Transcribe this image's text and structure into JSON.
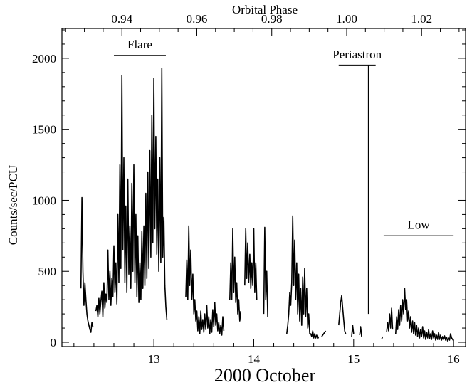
{
  "chart_data": {
    "type": "line",
    "title": "",
    "xlabel": "2000 October",
    "ylabel": "Counts/sec/PCU",
    "top_axis_label": "Orbital Phase",
    "xlim": [
      12.08,
      16.12
    ],
    "ylim": [
      -30,
      2210
    ],
    "x_ticks": [
      13,
      14,
      15,
      16
    ],
    "y_ticks": [
      0,
      500,
      1000,
      1500,
      2000
    ],
    "top_ticks": [
      {
        "label": "0.94",
        "x": 12.68
      },
      {
        "label": "0.96",
        "x": 13.43
      },
      {
        "label": "0.98",
        "x": 14.18
      },
      {
        "label": "1.00",
        "x": 14.93
      },
      {
        "label": "1.02",
        "x": 15.68
      }
    ],
    "annotations": [
      {
        "label": "Flare",
        "x_start": 12.6,
        "x_end": 13.12,
        "y": 2020
      },
      {
        "label": "Periastron",
        "x_start": 14.85,
        "x_end": 15.22,
        "y": 1950,
        "x_line": 15.15,
        "y_line_bottom": 200
      },
      {
        "label": "Low",
        "x_start": 15.3,
        "x_end": 16.0,
        "y": 750
      }
    ],
    "series": [
      {
        "segments": [
          [
            [
              12.27,
              380
            ],
            [
              12.28,
              1020
            ],
            [
              12.29,
              500
            ],
            [
              12.3,
              260
            ],
            [
              12.31,
              420
            ],
            [
              12.32,
              300
            ],
            [
              12.33,
              200
            ],
            [
              12.34,
              150
            ],
            [
              12.35,
              120
            ],
            [
              12.36,
              90
            ],
            [
              12.37,
              70
            ],
            [
              12.38,
              140
            ],
            [
              12.39,
              110
            ]
          ],
          [
            [
              12.42,
              220
            ],
            [
              12.43,
              260
            ],
            [
              12.44,
              180
            ],
            [
              12.45,
              310
            ],
            [
              12.46,
              200
            ],
            [
              12.47,
              290
            ],
            [
              12.48,
              360
            ],
            [
              12.49,
              180
            ],
            [
              12.5,
              420
            ],
            [
              12.51,
              240
            ],
            [
              12.52,
              340
            ],
            [
              12.53,
              280
            ],
            [
              12.54,
              650
            ],
            [
              12.55,
              300
            ],
            [
              12.56,
              500
            ],
            [
              12.57,
              260
            ],
            [
              12.58,
              450
            ],
            [
              12.59,
              320
            ],
            [
              12.6,
              680
            ],
            [
              12.61,
              350
            ],
            [
              12.62,
              560
            ],
            [
              12.63,
              270
            ],
            [
              12.64,
              900
            ],
            [
              12.65,
              420
            ],
            [
              12.66,
              1250
            ],
            [
              12.67,
              520
            ],
            [
              12.68,
              1880
            ],
            [
              12.69,
              650
            ],
            [
              12.7,
              1300
            ],
            [
              12.71,
              420
            ],
            [
              12.72,
              960
            ],
            [
              12.73,
              350
            ],
            [
              12.74,
              1150
            ],
            [
              12.75,
              480
            ],
            [
              12.76,
              820
            ],
            [
              12.77,
              380
            ],
            [
              12.78,
              1120
            ],
            [
              12.79,
              500
            ],
            [
              12.8,
              1250
            ],
            [
              12.81,
              420
            ],
            [
              12.82,
              900
            ],
            [
              12.83,
              320
            ],
            [
              12.84,
              750
            ],
            [
              12.85,
              280
            ],
            [
              12.86,
              560
            ],
            [
              12.87,
              300
            ],
            [
              12.88,
              780
            ],
            [
              12.89,
              380
            ],
            [
              12.9,
              820
            ],
            [
              12.91,
              400
            ],
            [
              12.92,
              1050
            ],
            [
              12.93,
              450
            ],
            [
              12.94,
              1200
            ],
            [
              12.95,
              520
            ],
            [
              12.96,
              1350
            ],
            [
              12.97,
              600
            ],
            [
              12.98,
              1600
            ],
            [
              12.99,
              700
            ],
            [
              13.0,
              1860
            ],
            [
              13.01,
              800
            ],
            [
              13.02,
              1450
            ],
            [
              13.03,
              620
            ],
            [
              13.04,
              1150
            ],
            [
              13.05,
              500
            ],
            [
              13.06,
              1300
            ],
            [
              13.07,
              560
            ],
            [
              13.08,
              1930
            ],
            [
              13.09,
              600
            ],
            [
              13.1,
              880
            ],
            [
              13.11,
              400
            ],
            [
              13.12,
              250
            ],
            [
              13.13,
              160
            ]
          ],
          [
            [
              13.32,
              320
            ],
            [
              13.33,
              580
            ],
            [
              13.34,
              300
            ],
            [
              13.35,
              820
            ],
            [
              13.36,
              400
            ],
            [
              13.37,
              650
            ],
            [
              13.38,
              300
            ],
            [
              13.39,
              480
            ],
            [
              13.4,
              200
            ],
            [
              13.41,
              300
            ],
            [
              13.42,
              150
            ],
            [
              13.43,
              220
            ],
            [
              13.44,
              80
            ],
            [
              13.45,
              180
            ],
            [
              13.46,
              60
            ],
            [
              13.47,
              220
            ],
            [
              13.48,
              90
            ],
            [
              13.49,
              160
            ],
            [
              13.5,
              70
            ],
            [
              13.51,
              200
            ],
            [
              13.52,
              90
            ],
            [
              13.53,
              260
            ],
            [
              13.54,
              100
            ],
            [
              13.55,
              180
            ],
            [
              13.56,
              60
            ],
            [
              13.57,
              160
            ],
            [
              13.58,
              70
            ],
            [
              13.59,
              230
            ],
            [
              13.6,
              110
            ],
            [
              13.61,
              280
            ],
            [
              13.62,
              120
            ],
            [
              13.63,
              200
            ],
            [
              13.64,
              80
            ],
            [
              13.65,
              140
            ],
            [
              13.66,
              60
            ],
            [
              13.67,
              120
            ],
            [
              13.68,
              50
            ],
            [
              13.69,
              180
            ],
            [
              13.7,
              80
            ]
          ],
          [
            [
              13.76,
              300
            ],
            [
              13.77,
              560
            ],
            [
              13.78,
              300
            ],
            [
              13.79,
              800
            ],
            [
              13.8,
              350
            ],
            [
              13.81,
              600
            ],
            [
              13.82,
              280
            ],
            [
              13.83,
              420
            ],
            [
              13.84,
              200
            ],
            [
              13.85,
              300
            ],
            [
              13.86,
              150
            ],
            [
              13.87,
              220
            ]
          ],
          [
            [
              13.91,
              400
            ],
            [
              13.92,
              800
            ],
            [
              13.93,
              450
            ],
            [
              13.94,
              700
            ],
            [
              13.95,
              420
            ],
            [
              13.96,
              620
            ],
            [
              13.97,
              380
            ],
            [
              13.98,
              560
            ],
            [
              13.99,
              400
            ],
            [
              14.0,
              800
            ],
            [
              14.01,
              350
            ],
            [
              14.02,
              560
            ],
            [
              14.03,
              300
            ]
          ],
          [
            [
              14.1,
              200
            ],
            [
              14.11,
              810
            ],
            [
              14.12,
              300
            ],
            [
              14.13,
              500
            ],
            [
              14.14,
              180
            ]
          ],
          [
            [
              14.33,
              60
            ],
            [
              14.34,
              120
            ],
            [
              14.35,
              200
            ],
            [
              14.36,
              350
            ],
            [
              14.37,
              260
            ],
            [
              14.38,
              420
            ],
            [
              14.39,
              890
            ],
            [
              14.4,
              400
            ],
            [
              14.41,
              720
            ],
            [
              14.42,
              300
            ],
            [
              14.43,
              560
            ],
            [
              14.44,
              200
            ],
            [
              14.45,
              480
            ],
            [
              14.46,
              150
            ],
            [
              14.47,
              380
            ],
            [
              14.48,
              120
            ],
            [
              14.49,
              460
            ],
            [
              14.5,
              200
            ],
            [
              14.51,
              520
            ],
            [
              14.52,
              180
            ],
            [
              14.53,
              380
            ],
            [
              14.54,
              100
            ],
            [
              14.55,
              200
            ],
            [
              14.56,
              60
            ],
            [
              14.57,
              60
            ],
            [
              14.58,
              40
            ],
            [
              14.59,
              80
            ],
            [
              14.6,
              30
            ],
            [
              14.61,
              60
            ],
            [
              14.62,
              30
            ],
            [
              14.63,
              50
            ],
            [
              14.64,
              25
            ],
            [
              14.65,
              40
            ]
          ],
          [
            [
              14.68,
              40
            ],
            [
              14.7,
              60
            ],
            [
              14.72,
              80
            ]
          ],
          [
            [
              14.85,
              120
            ],
            [
              14.86,
              200
            ],
            [
              14.87,
              280
            ],
            [
              14.88,
              330
            ],
            [
              14.89,
              240
            ],
            [
              14.9,
              160
            ],
            [
              14.91,
              80
            ],
            [
              14.92,
              60
            ]
          ],
          [
            [
              14.98,
              40
            ],
            [
              14.99,
              120
            ],
            [
              15.0,
              60
            ]
          ],
          [
            [
              15.06,
              50
            ],
            [
              15.07,
              110
            ],
            [
              15.08,
              40
            ]
          ],
          [
            [
              15.42,
              60
            ],
            [
              15.43,
              180
            ],
            [
              15.44,
              90
            ],
            [
              15.45,
              230
            ],
            [
              15.46,
              120
            ],
            [
              15.47,
              260
            ],
            [
              15.48,
              150
            ],
            [
              15.49,
              300
            ],
            [
              15.5,
              200
            ],
            [
              15.51,
              380
            ],
            [
              15.52,
              230
            ],
            [
              15.53,
              300
            ],
            [
              15.54,
              150
            ],
            [
              15.55,
              220
            ],
            [
              15.56,
              100
            ],
            [
              15.57,
              180
            ],
            [
              15.58,
              70
            ],
            [
              15.59,
              150
            ],
            [
              15.6,
              60
            ],
            [
              15.61,
              140
            ],
            [
              15.62,
              50
            ],
            [
              15.63,
              120
            ],
            [
              15.64,
              40
            ],
            [
              15.65,
              100
            ],
            [
              15.66,
              30
            ],
            [
              15.67,
              90
            ],
            [
              15.68,
              40
            ],
            [
              15.69,
              110
            ],
            [
              15.7,
              30
            ],
            [
              15.71,
              80
            ],
            [
              15.72,
              20
            ],
            [
              15.73,
              70
            ],
            [
              15.74,
              30
            ],
            [
              15.75,
              90
            ],
            [
              15.76,
              25
            ],
            [
              15.77,
              60
            ],
            [
              15.78,
              20
            ],
            [
              15.79,
              80
            ],
            [
              15.8,
              30
            ],
            [
              15.81,
              60
            ],
            [
              15.82,
              15
            ],
            [
              15.83,
              50
            ],
            [
              15.84,
              20
            ],
            [
              15.85,
              70
            ],
            [
              15.86,
              20
            ],
            [
              15.87,
              50
            ],
            [
              15.88,
              15
            ],
            [
              15.89,
              40
            ],
            [
              15.9,
              20
            ],
            [
              15.91,
              45
            ],
            [
              15.92,
              15
            ],
            [
              15.93,
              35
            ],
            [
              15.94,
              10
            ],
            [
              15.95,
              30
            ],
            [
              15.96,
              15
            ],
            [
              15.97,
              60
            ],
            [
              15.98,
              30
            ],
            [
              15.99,
              20
            ],
            [
              16.0,
              10
            ]
          ],
          [
            [
              15.33,
              70
            ],
            [
              15.34,
              140
            ],
            [
              15.35,
              80
            ],
            [
              15.36,
              200
            ],
            [
              15.37,
              100
            ],
            [
              15.38,
              240
            ],
            [
              15.39,
              90
            ]
          ],
          [
            [
              15.28,
              20
            ],
            [
              15.29,
              40
            ]
          ]
        ]
      }
    ]
  }
}
